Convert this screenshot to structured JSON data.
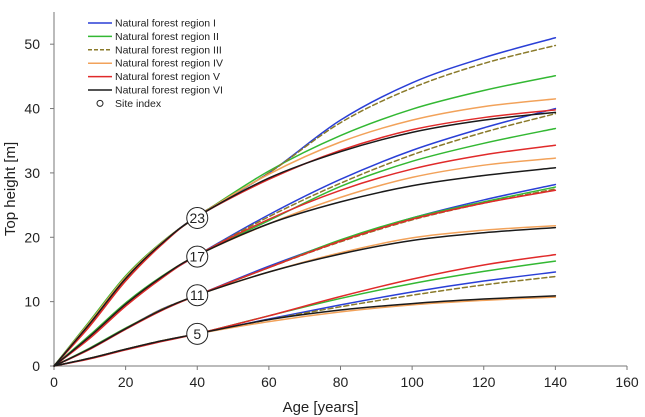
{
  "chart_data": {
    "type": "line",
    "xlabel": "Age [years]",
    "ylabel": "Top height [m]",
    "xlim": [
      0,
      160
    ],
    "ylim": [
      0,
      55
    ],
    "xticks": [
      0,
      20,
      40,
      60,
      80,
      100,
      120,
      140,
      160
    ],
    "yticks": [
      0,
      10,
      20,
      30,
      40,
      50
    ],
    "grid": false,
    "legend_position": "top-left",
    "reference_age": 40,
    "site_indices": [
      5,
      11,
      17,
      23
    ],
    "series": [
      {
        "name": "Natural forest region I",
        "color": "#2a3fd6",
        "dash": "solid",
        "curves": [
          {
            "si": 23,
            "x": [
              0,
              10,
              20,
              30,
              40,
              60,
              80,
              100,
              120,
              140
            ],
            "y": [
              0,
              6.5,
              13.5,
              19,
              23.3,
              30,
              38.2,
              44,
              47.9,
              51
            ]
          },
          {
            "si": 17,
            "x": [
              0,
              10,
              20,
              30,
              40,
              60,
              80,
              100,
              120,
              140
            ],
            "y": [
              0,
              4.5,
              9.5,
              13.8,
              17.2,
              23.5,
              29,
              33.5,
              37,
              40
            ]
          },
          {
            "si": 11,
            "x": [
              0,
              10,
              20,
              30,
              40,
              60,
              80,
              100,
              120,
              140
            ],
            "y": [
              0,
              2.7,
              5.8,
              8.8,
              11,
              15.5,
              19.5,
              23,
              25.8,
              28.2
            ]
          },
          {
            "si": 5,
            "x": [
              0,
              10,
              20,
              30,
              40,
              60,
              80,
              100,
              120,
              140
            ],
            "y": [
              0,
              1.2,
              2.6,
              3.9,
              5,
              7.3,
              9.5,
              11.5,
              13.2,
              14.6
            ]
          }
        ]
      },
      {
        "name": "Natural forest region II",
        "color": "#33b833",
        "dash": "solid",
        "curves": [
          {
            "si": 23,
            "x": [
              0,
              10,
              20,
              30,
              40,
              60,
              80,
              100,
              120,
              140
            ],
            "y": [
              0,
              7,
              14,
              19.2,
              23.2,
              30.3,
              35.8,
              39.9,
              42.8,
              45.1
            ]
          },
          {
            "si": 17,
            "x": [
              0,
              10,
              20,
              30,
              40,
              60,
              80,
              100,
              120,
              140
            ],
            "y": [
              0,
              4.8,
              9.8,
              13.9,
              17.2,
              22.6,
              27.9,
              31.8,
              34.6,
              36.9
            ]
          },
          {
            "si": 11,
            "x": [
              0,
              10,
              20,
              30,
              40,
              60,
              80,
              100,
              120,
              140
            ],
            "y": [
              0,
              2.8,
              5.9,
              8.7,
              11,
              15.3,
              19.6,
              23,
              25.5,
              27.8
            ]
          },
          {
            "si": 5,
            "x": [
              0,
              10,
              20,
              30,
              40,
              60,
              80,
              100,
              120,
              140
            ],
            "y": [
              0,
              1.2,
              2.6,
              3.9,
              5,
              7.8,
              10.5,
              12.8,
              14.7,
              16.3
            ]
          }
        ]
      },
      {
        "name": "Natural forest region III",
        "color": "#8a7a2a",
        "dash": "dashed",
        "curves": [
          {
            "si": 23,
            "x": [
              0,
              10,
              20,
              30,
              40,
              60,
              80,
              100,
              120,
              140
            ],
            "y": [
              0,
              6.5,
              13.5,
              19,
              23.3,
              30,
              37.8,
              43.2,
              47,
              49.8
            ]
          },
          {
            "si": 17,
            "x": [
              0,
              10,
              20,
              30,
              40,
              60,
              80,
              100,
              120,
              140
            ],
            "y": [
              0,
              4.5,
              9.5,
              13.8,
              17.2,
              23.2,
              28.4,
              32.8,
              36.3,
              39.2
            ]
          },
          {
            "si": 11,
            "x": [
              0,
              10,
              20,
              30,
              40,
              60,
              80,
              100,
              120,
              140
            ],
            "y": [
              0,
              2.7,
              5.8,
              8.8,
              11,
              15.3,
              19.3,
              22.7,
              25.3,
              27.5
            ]
          },
          {
            "si": 5,
            "x": [
              0,
              10,
              20,
              30,
              40,
              60,
              80,
              100,
              120,
              140
            ],
            "y": [
              0,
              1.2,
              2.6,
              3.9,
              5,
              7.2,
              9.2,
              11,
              12.6,
              13.9
            ]
          }
        ]
      },
      {
        "name": "Natural forest region IV",
        "color": "#f2a25a",
        "dash": "solid",
        "curves": [
          {
            "si": 23,
            "x": [
              0,
              10,
              20,
              30,
              40,
              60,
              80,
              100,
              120,
              140
            ],
            "y": [
              0,
              6.8,
              13.8,
              19.1,
              23.2,
              29.8,
              34.8,
              38.2,
              40.3,
              41.5
            ]
          },
          {
            "si": 17,
            "x": [
              0,
              10,
              20,
              30,
              40,
              60,
              80,
              100,
              120,
              140
            ],
            "y": [
              0,
              4.6,
              9.6,
              13.8,
              17.2,
              22.1,
              26.2,
              29.3,
              31.2,
              32.3
            ]
          },
          {
            "si": 11,
            "x": [
              0,
              10,
              20,
              30,
              40,
              60,
              80,
              100,
              120,
              140
            ],
            "y": [
              0,
              2.7,
              5.8,
              8.7,
              11,
              14.6,
              17.6,
              19.9,
              21.1,
              21.8
            ]
          },
          {
            "si": 5,
            "x": [
              0,
              10,
              20,
              30,
              40,
              60,
              80,
              100,
              120,
              140
            ],
            "y": [
              0,
              1.2,
              2.6,
              3.9,
              5,
              6.9,
              8.4,
              9.5,
              10.2,
              10.7
            ]
          }
        ]
      },
      {
        "name": "Natural forest region V",
        "color": "#e02a2a",
        "dash": "solid",
        "curves": [
          {
            "si": 23,
            "x": [
              0,
              10,
              20,
              30,
              40,
              60,
              80,
              100,
              120,
              140
            ],
            "y": [
              0,
              6.2,
              13.2,
              18.8,
              23.2,
              29,
              33.5,
              36.7,
              38.6,
              39.8
            ]
          },
          {
            "si": 17,
            "x": [
              0,
              10,
              20,
              30,
              40,
              60,
              80,
              100,
              120,
              140
            ],
            "y": [
              0,
              4.3,
              9.3,
              13.6,
              17.2,
              22.8,
              27.3,
              30.6,
              32.8,
              34.3
            ]
          },
          {
            "si": 11,
            "x": [
              0,
              10,
              20,
              30,
              40,
              60,
              80,
              100,
              120,
              140
            ],
            "y": [
              0,
              2.6,
              5.7,
              8.6,
              11,
              15.3,
              19.4,
              22.8,
              25.3,
              27.3
            ]
          },
          {
            "si": 5,
            "x": [
              0,
              10,
              20,
              30,
              40,
              60,
              80,
              100,
              120,
              140
            ],
            "y": [
              0,
              1.1,
              2.5,
              3.8,
              5,
              7.8,
              10.8,
              13.5,
              15.7,
              17.3
            ]
          }
        ]
      },
      {
        "name": "Natural forest region VI",
        "color": "#1a1a1a",
        "dash": "solid",
        "curves": [
          {
            "si": 23,
            "x": [
              0,
              10,
              20,
              30,
              40,
              60,
              80,
              100,
              120,
              140
            ],
            "y": [
              0,
              6.6,
              13.6,
              19,
              23.2,
              29.2,
              33.3,
              36.3,
              38.2,
              39.4
            ]
          },
          {
            "si": 17,
            "x": [
              0,
              10,
              20,
              30,
              40,
              60,
              80,
              100,
              120,
              140
            ],
            "y": [
              0,
              4.6,
              9.6,
              13.8,
              17.2,
              22.1,
              25.5,
              28,
              29.6,
              30.8
            ]
          },
          {
            "si": 11,
            "x": [
              0,
              10,
              20,
              30,
              40,
              60,
              80,
              100,
              120,
              140
            ],
            "y": [
              0,
              2.7,
              5.8,
              8.7,
              11,
              14.6,
              17.4,
              19.5,
              20.7,
              21.5
            ]
          },
          {
            "si": 5,
            "x": [
              0,
              10,
              20,
              30,
              40,
              60,
              80,
              100,
              120,
              140
            ],
            "y": [
              0,
              1.2,
              2.6,
              3.9,
              5,
              7.2,
              8.7,
              9.7,
              10.4,
              10.9
            ]
          }
        ]
      }
    ],
    "legend": {
      "marker_label": "Site index"
    }
  }
}
